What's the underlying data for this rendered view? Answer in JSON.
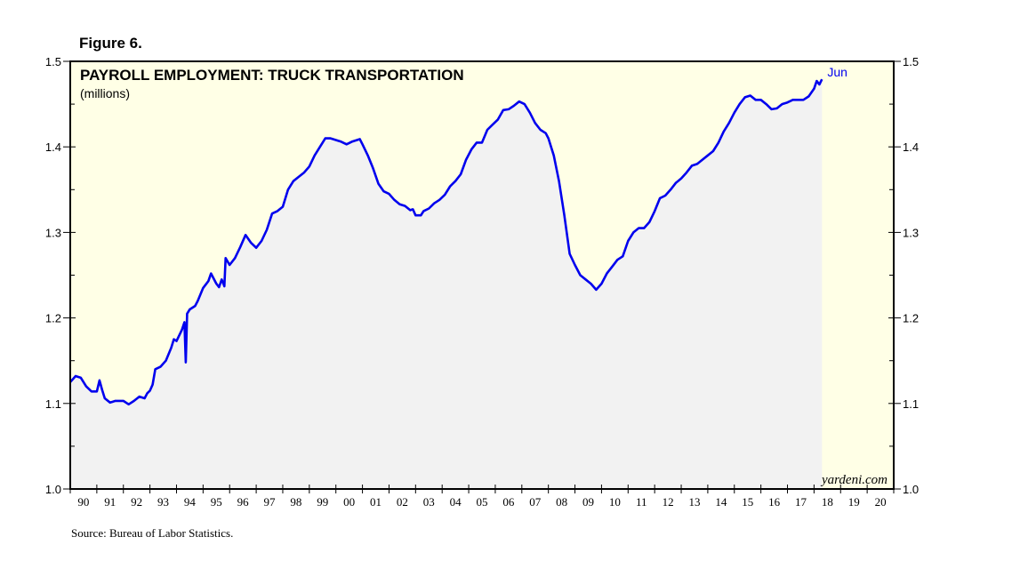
{
  "figure_label": "Figure 6.",
  "source": "Source: Bureau of Labor Statistics.",
  "watermark": "yardeni.com",
  "colors": {
    "line": "#0000ee",
    "plot_background": "#ffffe6",
    "area_fill": "#f2f2f2",
    "frame": "#000000"
  },
  "chart_data": {
    "type": "area",
    "title": "PAYROLL EMPLOYMENT: TRUCK TRANSPORTATION",
    "subtitle": "(millions)",
    "ylim": [
      1.0,
      1.5
    ],
    "xlim": [
      1990.0,
      2021.0
    ],
    "y_ticks": [
      "1.0",
      "1.1",
      "1.2",
      "1.3",
      "1.4",
      "1.5"
    ],
    "x_tick_labels": [
      "90",
      "91",
      "92",
      "93",
      "94",
      "95",
      "96",
      "97",
      "98",
      "99",
      "00",
      "01",
      "02",
      "03",
      "04",
      "05",
      "06",
      "07",
      "08",
      "09",
      "10",
      "11",
      "12",
      "13",
      "14",
      "15",
      "16",
      "17",
      "18",
      "19",
      "20"
    ],
    "grid": false,
    "end_label": "Jun",
    "series": [
      {
        "values": [
          [
            1990.0,
            1.125
          ],
          [
            1990.2,
            1.132
          ],
          [
            1990.4,
            1.13
          ],
          [
            1990.6,
            1.12
          ],
          [
            1990.8,
            1.114
          ],
          [
            1991.0,
            1.114
          ],
          [
            1991.1,
            1.127
          ],
          [
            1991.2,
            1.116
          ],
          [
            1991.3,
            1.106
          ],
          [
            1991.5,
            1.101
          ],
          [
            1991.7,
            1.103
          ],
          [
            1992.0,
            1.103
          ],
          [
            1992.2,
            1.099
          ],
          [
            1992.4,
            1.103
          ],
          [
            1992.6,
            1.108
          ],
          [
            1992.8,
            1.106
          ],
          [
            1992.9,
            1.112
          ],
          [
            1993.0,
            1.115
          ],
          [
            1993.1,
            1.122
          ],
          [
            1993.2,
            1.14
          ],
          [
            1993.4,
            1.143
          ],
          [
            1993.6,
            1.15
          ],
          [
            1993.8,
            1.165
          ],
          [
            1993.9,
            1.175
          ],
          [
            1994.0,
            1.173
          ],
          [
            1994.2,
            1.186
          ],
          [
            1994.3,
            1.195
          ],
          [
            1994.35,
            1.148
          ],
          [
            1994.4,
            1.205
          ],
          [
            1994.5,
            1.21
          ],
          [
            1994.7,
            1.214
          ],
          [
            1994.8,
            1.22
          ],
          [
            1995.0,
            1.235
          ],
          [
            1995.2,
            1.243
          ],
          [
            1995.3,
            1.252
          ],
          [
            1995.5,
            1.24
          ],
          [
            1995.6,
            1.236
          ],
          [
            1995.7,
            1.245
          ],
          [
            1995.8,
            1.237
          ],
          [
            1995.85,
            1.27
          ],
          [
            1996.0,
            1.262
          ],
          [
            1996.2,
            1.27
          ],
          [
            1996.4,
            1.283
          ],
          [
            1996.6,
            1.297
          ],
          [
            1996.8,
            1.288
          ],
          [
            1997.0,
            1.282
          ],
          [
            1997.2,
            1.29
          ],
          [
            1997.4,
            1.303
          ],
          [
            1997.6,
            1.322
          ],
          [
            1997.8,
            1.325
          ],
          [
            1998.0,
            1.33
          ],
          [
            1998.2,
            1.35
          ],
          [
            1998.4,
            1.36
          ],
          [
            1998.6,
            1.365
          ],
          [
            1998.8,
            1.37
          ],
          [
            1999.0,
            1.377
          ],
          [
            1999.2,
            1.39
          ],
          [
            1999.4,
            1.4
          ],
          [
            1999.6,
            1.41
          ],
          [
            1999.8,
            1.41
          ],
          [
            2000.0,
            1.408
          ],
          [
            2000.2,
            1.406
          ],
          [
            2000.4,
            1.403
          ],
          [
            2000.6,
            1.406
          ],
          [
            2000.9,
            1.409
          ],
          [
            2001.0,
            1.403
          ],
          [
            2001.2,
            1.39
          ],
          [
            2001.4,
            1.375
          ],
          [
            2001.6,
            1.357
          ],
          [
            2001.8,
            1.348
          ],
          [
            2002.0,
            1.345
          ],
          [
            2002.2,
            1.338
          ],
          [
            2002.4,
            1.333
          ],
          [
            2002.6,
            1.331
          ],
          [
            2002.8,
            1.326
          ],
          [
            2002.9,
            1.327
          ],
          [
            2003.0,
            1.32
          ],
          [
            2003.2,
            1.32
          ],
          [
            2003.3,
            1.325
          ],
          [
            2003.5,
            1.328
          ],
          [
            2003.7,
            1.334
          ],
          [
            2003.9,
            1.338
          ],
          [
            2004.1,
            1.344
          ],
          [
            2004.3,
            1.354
          ],
          [
            2004.5,
            1.36
          ],
          [
            2004.7,
            1.368
          ],
          [
            2004.9,
            1.385
          ],
          [
            2005.1,
            1.397
          ],
          [
            2005.3,
            1.405
          ],
          [
            2005.5,
            1.405
          ],
          [
            2005.7,
            1.42
          ],
          [
            2005.9,
            1.426
          ],
          [
            2006.1,
            1.432
          ],
          [
            2006.3,
            1.443
          ],
          [
            2006.5,
            1.444
          ],
          [
            2006.7,
            1.448
          ],
          [
            2006.9,
            1.453
          ],
          [
            2007.1,
            1.45
          ],
          [
            2007.3,
            1.44
          ],
          [
            2007.5,
            1.428
          ],
          [
            2007.7,
            1.42
          ],
          [
            2007.9,
            1.416
          ],
          [
            2008.0,
            1.41
          ],
          [
            2008.2,
            1.39
          ],
          [
            2008.4,
            1.36
          ],
          [
            2008.6,
            1.32
          ],
          [
            2008.8,
            1.275
          ],
          [
            2009.0,
            1.262
          ],
          [
            2009.2,
            1.25
          ],
          [
            2009.4,
            1.245
          ],
          [
            2009.6,
            1.24
          ],
          [
            2009.8,
            1.233
          ],
          [
            2010.0,
            1.24
          ],
          [
            2010.2,
            1.252
          ],
          [
            2010.4,
            1.26
          ],
          [
            2010.6,
            1.268
          ],
          [
            2010.8,
            1.272
          ],
          [
            2011.0,
            1.29
          ],
          [
            2011.2,
            1.3
          ],
          [
            2011.4,
            1.305
          ],
          [
            2011.6,
            1.305
          ],
          [
            2011.8,
            1.312
          ],
          [
            2012.0,
            1.325
          ],
          [
            2012.2,
            1.34
          ],
          [
            2012.4,
            1.343
          ],
          [
            2012.6,
            1.35
          ],
          [
            2012.8,
            1.358
          ],
          [
            2013.0,
            1.363
          ],
          [
            2013.2,
            1.37
          ],
          [
            2013.4,
            1.378
          ],
          [
            2013.6,
            1.38
          ],
          [
            2013.8,
            1.385
          ],
          [
            2014.0,
            1.39
          ],
          [
            2014.2,
            1.395
          ],
          [
            2014.4,
            1.405
          ],
          [
            2014.6,
            1.418
          ],
          [
            2014.8,
            1.428
          ],
          [
            2015.0,
            1.44
          ],
          [
            2015.2,
            1.45
          ],
          [
            2015.4,
            1.458
          ],
          [
            2015.6,
            1.46
          ],
          [
            2015.8,
            1.455
          ],
          [
            2016.0,
            1.455
          ],
          [
            2016.2,
            1.45
          ],
          [
            2016.4,
            1.444
          ],
          [
            2016.6,
            1.445
          ],
          [
            2016.8,
            1.45
          ],
          [
            2017.0,
            1.452
          ],
          [
            2017.2,
            1.455
          ],
          [
            2017.4,
            1.455
          ],
          [
            2017.6,
            1.455
          ],
          [
            2017.8,
            1.459
          ],
          [
            2018.0,
            1.468
          ],
          [
            2018.1,
            1.477
          ],
          [
            2018.2,
            1.473
          ],
          [
            2018.3,
            1.479
          ]
        ]
      }
    ]
  }
}
